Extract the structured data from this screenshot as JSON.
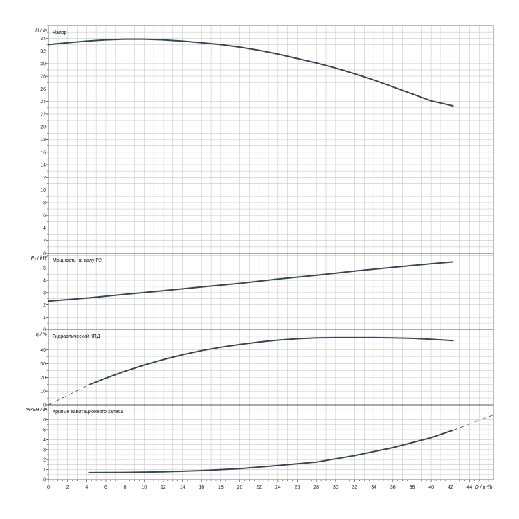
{
  "chart_data": [
    {
      "type": "line",
      "title": "Напор",
      "ylabel": "H / m",
      "xlim": [
        0,
        46.5
      ],
      "ylim": [
        0,
        36
      ],
      "yticks": [
        0,
        2,
        4,
        6,
        8,
        10,
        12,
        14,
        16,
        18,
        20,
        22,
        24,
        26,
        28,
        30,
        32,
        34
      ],
      "x": [
        0,
        2,
        4,
        6,
        8,
        10,
        12,
        14,
        16,
        18,
        20,
        22,
        24,
        26,
        28,
        30,
        32,
        34,
        36,
        38,
        40,
        42.3
      ],
      "y": [
        33.0,
        33.3,
        33.55,
        33.75,
        33.85,
        33.85,
        33.75,
        33.55,
        33.3,
        33.0,
        32.6,
        32.1,
        31.5,
        30.8,
        30.1,
        29.3,
        28.4,
        27.4,
        26.3,
        25.2,
        24.1,
        23.3
      ]
    },
    {
      "type": "line",
      "title": "Мощность на валу P2",
      "ylabel": "P₂ / kW",
      "xlim": [
        0,
        46.5
      ],
      "ylim": [
        0,
        6.2
      ],
      "yticks": [
        0,
        1,
        2,
        3,
        4,
        5
      ],
      "x": [
        0,
        4,
        8,
        12,
        16,
        20,
        24,
        28,
        32,
        36,
        40,
        42.3
      ],
      "y": [
        2.3,
        2.55,
        2.85,
        3.15,
        3.45,
        3.75,
        4.1,
        4.4,
        4.75,
        5.05,
        5.35,
        5.5
      ]
    },
    {
      "type": "line",
      "title": "Гидравлический КПД",
      "ylabel": "η / %",
      "xlim": [
        0,
        46.5
      ],
      "ylim": [
        0,
        55
      ],
      "yticks": [
        0,
        10,
        20,
        30,
        40
      ],
      "extrapolated": {
        "x": [
          0,
          4.2
        ],
        "y": [
          0,
          14.5
        ]
      },
      "x": [
        4.2,
        6,
        8,
        10,
        12,
        14,
        16,
        18,
        20,
        22,
        24,
        26,
        28,
        30,
        32,
        34,
        36,
        38,
        40,
        42.3
      ],
      "y": [
        14.5,
        19.5,
        24.5,
        29,
        33,
        36.5,
        39.5,
        42,
        44,
        45.8,
        47.2,
        48.2,
        48.8,
        49,
        49,
        49,
        48.8,
        48.5,
        47.8,
        46.8
      ]
    },
    {
      "type": "line",
      "title": "Кривые кавитационного запаса",
      "ylabel": "NPSH / m",
      "xlabel": "Q / m³/h",
      "xlim": [
        0,
        46.5
      ],
      "ylim": [
        0,
        7.5
      ],
      "yticks": [
        0,
        1,
        2,
        3,
        4,
        5,
        6,
        7
      ],
      "xticks": [
        0,
        2,
        4,
        6,
        8,
        10,
        12,
        14,
        16,
        18,
        20,
        22,
        24,
        26,
        28,
        30,
        32,
        34,
        36,
        38,
        40,
        42,
        44
      ],
      "extrapolated": {
        "x": [
          42.3,
          46.5
        ],
        "y": [
          4.95,
          6.5
        ]
      },
      "x": [
        4.2,
        8,
        12,
        16,
        20,
        24,
        28,
        32,
        36,
        40,
        42.3
      ],
      "y": [
        0.7,
        0.72,
        0.78,
        0.9,
        1.1,
        1.4,
        1.75,
        2.4,
        3.2,
        4.2,
        4.95
      ]
    }
  ]
}
